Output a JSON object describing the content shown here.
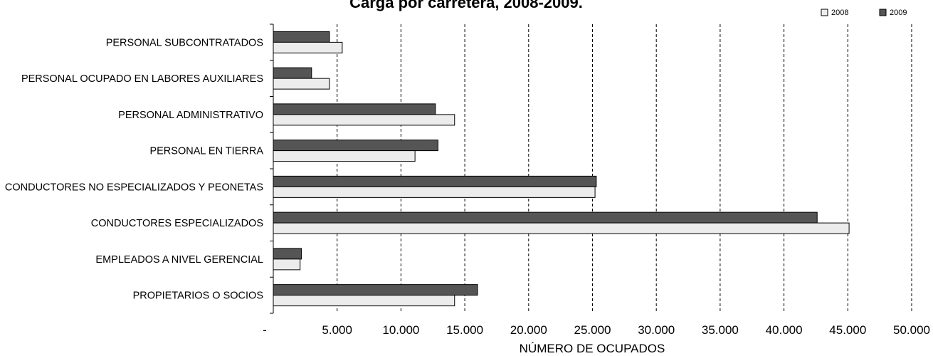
{
  "chart_data": {
    "type": "bar",
    "orientation": "horizontal",
    "title": "Carga por carretera, 2008-2009.",
    "xlabel": "NÚMERO DE OCUPADOS",
    "ylabel": "",
    "xlim": [
      0,
      50000
    ],
    "x_ticks": [
      0,
      5000,
      10000,
      15000,
      20000,
      25000,
      30000,
      35000,
      40000,
      45000,
      50000
    ],
    "x_tick_labels": [
      "-",
      "5.000",
      "10.000",
      "15.000",
      "20.000",
      "25.000",
      "30.000",
      "35.000",
      "40.000",
      "45.000",
      "50.000"
    ],
    "grid": "vertical dashed",
    "legend_position": "top-right",
    "categories": [
      "PERSONAL SUBCONTRATADOS",
      "PERSONAL OCUPADO EN LABORES AUXILIARES",
      "PERSONAL ADMINISTRATIVO",
      "PERSONAL EN TIERRA",
      "CONDUCTORES NO ESPECIALIZADOS Y PEONETAS",
      "CONDUCTORES ESPECIALIZADOS",
      "EMPLEADOS A NIVEL GERENCIAL",
      "PROPIETARIOS O SOCIOS"
    ],
    "series": [
      {
        "name": "2009",
        "color": "#555555",
        "values": [
          4400,
          3000,
          12700,
          12900,
          25300,
          42600,
          2200,
          16000
        ]
      },
      {
        "name": "2008",
        "color": "#ececec",
        "values": [
          5400,
          4400,
          14200,
          11100,
          25200,
          45100,
          2100,
          14200
        ]
      }
    ]
  }
}
